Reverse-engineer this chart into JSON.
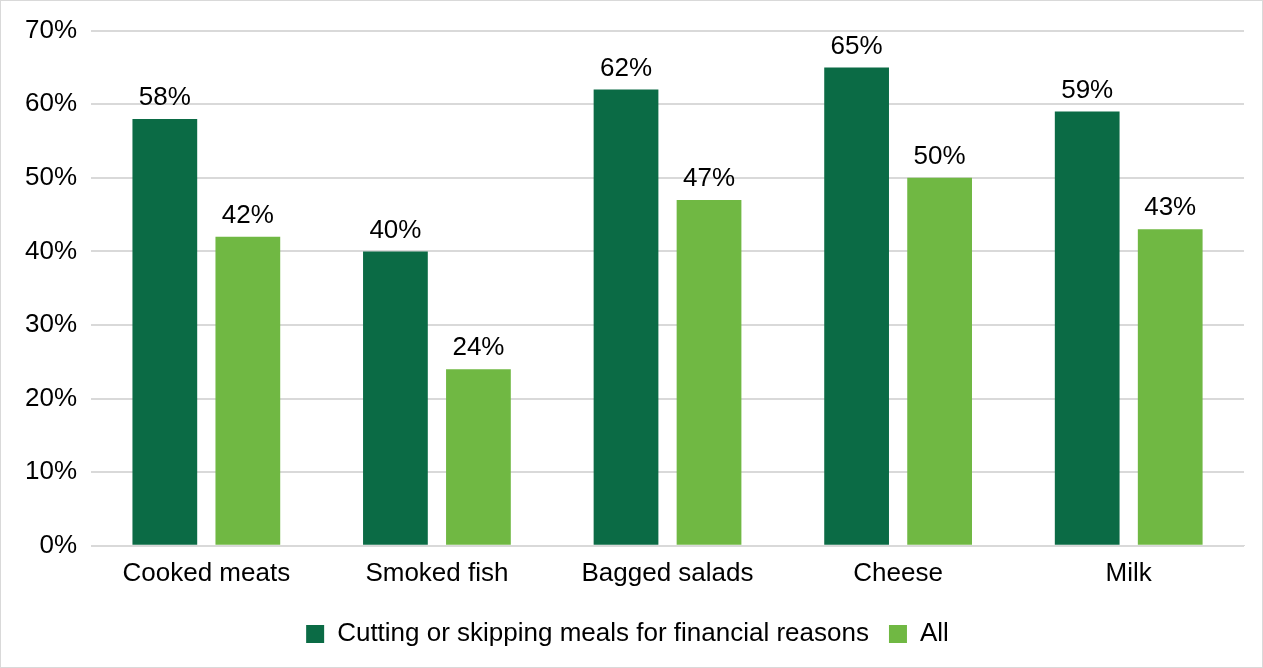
{
  "chart_data": {
    "type": "bar",
    "categories": [
      "Cooked meats",
      "Smoked fish",
      "Bagged salads",
      "Cheese",
      "Milk"
    ],
    "series": [
      {
        "name": "Cutting or skipping meals for financial reasons",
        "color": "#0b6b45",
        "values": [
          58,
          40,
          62,
          65,
          59
        ],
        "value_labels": [
          "58%",
          "40%",
          "62%",
          "65%",
          "59%"
        ]
      },
      {
        "name": "All",
        "color": "#70b843",
        "values": [
          42,
          24,
          47,
          50,
          43
        ],
        "value_labels": [
          "42%",
          "24%",
          "47%",
          "50%",
          "43%"
        ]
      }
    ],
    "ylim": [
      0,
      70
    ],
    "yticks": [
      {
        "value": 0,
        "label": "0%"
      },
      {
        "value": 10,
        "label": "10%"
      },
      {
        "value": 20,
        "label": "20%"
      },
      {
        "value": 30,
        "label": "30%"
      },
      {
        "value": 40,
        "label": "40%"
      },
      {
        "value": 50,
        "label": "50%"
      },
      {
        "value": 60,
        "label": "60%"
      },
      {
        "value": 70,
        "label": "70%"
      }
    ],
    "grid": "y",
    "legend": "bottom"
  }
}
